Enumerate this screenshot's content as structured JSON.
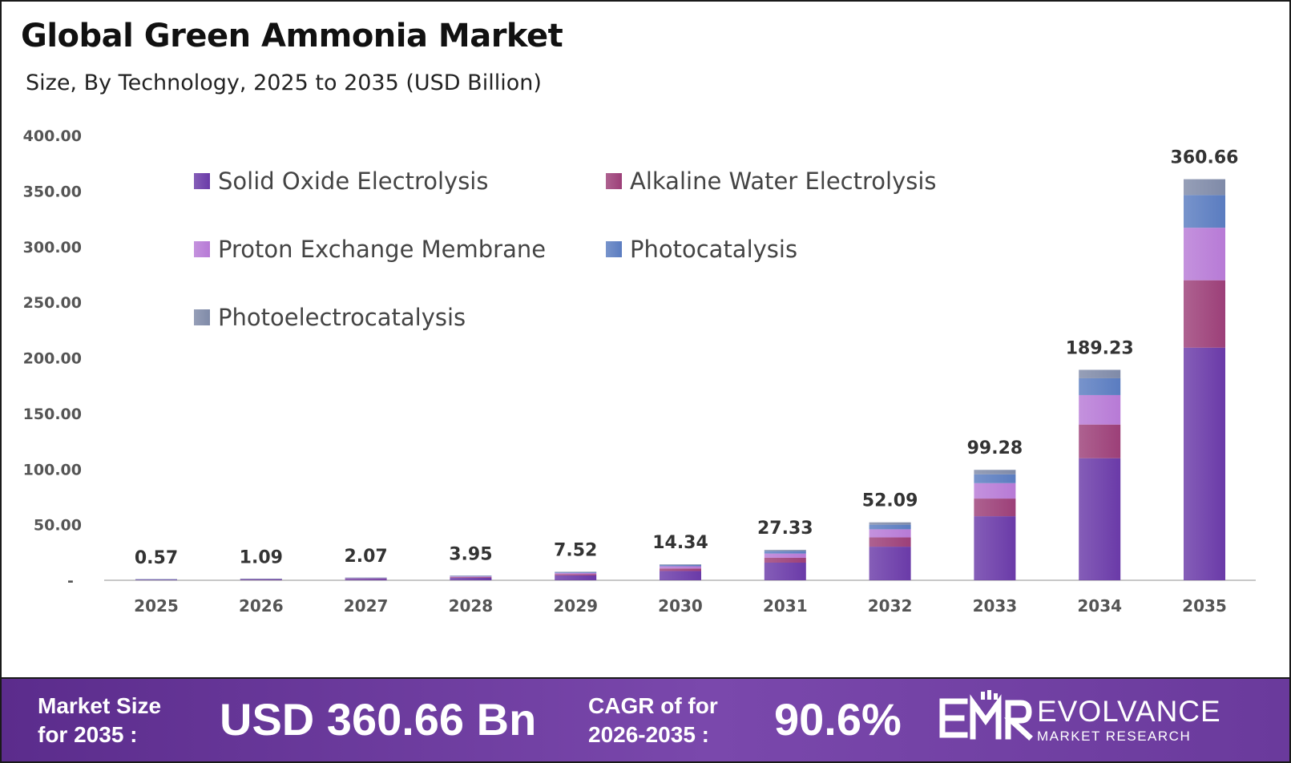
{
  "header": {
    "title": "Global Green Ammonia Market",
    "subtitle": "Size, By Technology, 2025 to 2035 (USD Billion)"
  },
  "chart_data": {
    "type": "bar",
    "stacked": true,
    "categories": [
      "2025",
      "2026",
      "2027",
      "2028",
      "2029",
      "2030",
      "2031",
      "2032",
      "2033",
      "2034",
      "2035"
    ],
    "totals": [
      0.57,
      1.09,
      2.07,
      3.95,
      7.52,
      14.34,
      27.33,
      52.09,
      99.28,
      189.23,
      360.66
    ],
    "total_labels": [
      "0.57",
      "1.09",
      "2.07",
      "3.95",
      "7.52",
      "14.34",
      "27.33",
      "52.09",
      "99.28",
      "189.23",
      "360.66"
    ],
    "series": [
      {
        "name": "Solid Oxide Electrolysis",
        "color": "#6a3aa8",
        "values": [
          0.33,
          0.63,
          1.2,
          2.29,
          4.36,
          8.32,
          15.85,
          30.21,
          57.58,
          109.75,
          209.18
        ]
      },
      {
        "name": "Alkaline Water Electrolysis",
        "color": "#9c3f78",
        "values": [
          0.09,
          0.17,
          0.33,
          0.63,
          1.2,
          2.29,
          4.37,
          8.33,
          15.88,
          30.28,
          60.6
        ]
      },
      {
        "name": "Proton Exchange Membrane",
        "color": "#b77ad6",
        "values": [
          0.08,
          0.15,
          0.29,
          0.55,
          1.05,
          2.01,
          3.83,
          7.29,
          13.9,
          26.49,
          47.22
        ]
      },
      {
        "name": "Photocatalysis",
        "color": "#5a7cc0",
        "values": [
          0.05,
          0.09,
          0.17,
          0.32,
          0.6,
          1.15,
          2.19,
          4.17,
          7.94,
          15.14,
          29.4
        ]
      },
      {
        "name": "Photoelectrocatalysis",
        "color": "#7f8aa8",
        "values": [
          0.02,
          0.05,
          0.08,
          0.16,
          0.31,
          0.57,
          1.09,
          2.09,
          3.98,
          7.57,
          14.26
        ]
      }
    ],
    "ylim": [
      0,
      400
    ],
    "yticks": [
      0,
      50,
      100,
      150,
      200,
      250,
      300,
      350,
      400
    ],
    "ytick_labels": [
      "-",
      "50.00",
      "100.00",
      "150.00",
      "200.00",
      "250.00",
      "300.00",
      "350.00",
      "400.00"
    ],
    "xlabel": "",
    "ylabel": "",
    "grid": false,
    "legend_position": "top-left"
  },
  "footer": {
    "market_size_label": "Market Size\nfor 2035 :",
    "market_size_value": "USD 360.66 Bn",
    "cagr_label": "CAGR of for\n2026-2035 :",
    "cagr_value": "90.6%",
    "brand_name": "EVOLVANCE",
    "brand_tagline": "MARKET RESEARCH",
    "brand_mark": "EMR",
    "bar_color": "#6a3a9c"
  }
}
